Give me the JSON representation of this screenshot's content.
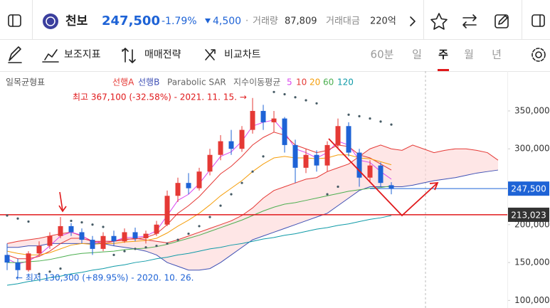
{
  "header": {
    "name": "천보",
    "price": "247,500",
    "change_pct": "-1.79%",
    "change": "4,500",
    "volume_label": "거래량",
    "volume": "87,809",
    "amount_label": "거래대금",
    "amount": "220억"
  },
  "toolbar": {
    "indicators": "보조지표",
    "strategy": "매매전략",
    "compare": "비교차트",
    "periods": [
      "60분",
      "일",
      "주",
      "월",
      "년"
    ],
    "active_period": 2
  },
  "chart_data": {
    "type": "candlestick",
    "legend_title": "일목균형표",
    "up_color": "#e53935",
    "down_color": "#1e63d6",
    "open": [
      160000,
      150000,
      140000,
      162000,
      172000,
      185000,
      198000,
      190000,
      180000,
      168000,
      185000,
      178000,
      190000,
      182000,
      188000,
      200000,
      238000,
      255000,
      248000,
      270000,
      292000,
      310000,
      300000,
      325000,
      350000,
      335000,
      340000,
      305000,
      275000,
      292000,
      278000,
      305000,
      330000,
      295000,
      262000,
      278000,
      252000
    ],
    "high": [
      175000,
      155000,
      165000,
      178000,
      190000,
      210000,
      202000,
      195000,
      185000,
      190000,
      192000,
      195000,
      196000,
      192000,
      205000,
      245000,
      262000,
      268000,
      275000,
      300000,
      318000,
      325000,
      330000,
      367100,
      358000,
      350000,
      342000,
      312000,
      300000,
      298000,
      310000,
      340000,
      335000,
      300000,
      285000,
      282000,
      256000
    ],
    "low": [
      140000,
      130300,
      138000,
      158000,
      168000,
      182000,
      185000,
      175000,
      160000,
      165000,
      172000,
      176000,
      178000,
      175000,
      185000,
      198000,
      230000,
      240000,
      245000,
      265000,
      285000,
      292000,
      296000,
      320000,
      325000,
      322000,
      295000,
      255000,
      268000,
      270000,
      270000,
      300000,
      290000,
      250000,
      255000,
      250000,
      240000
    ],
    "close": [
      150000,
      140000,
      162000,
      172000,
      185000,
      198000,
      190000,
      180000,
      168000,
      185000,
      178000,
      190000,
      182000,
      188000,
      200000,
      238000,
      255000,
      248000,
      270000,
      292000,
      310000,
      300000,
      325000,
      350000,
      335000,
      340000,
      305000,
      275000,
      292000,
      278000,
      305000,
      330000,
      295000,
      262000,
      278000,
      255000,
      247500
    ],
    "cloud": [
      {
        "name": "선행A",
        "color": "#e53935",
        "values": [
          175000,
          178000,
          180000,
          182000,
          185000,
          188000,
          190000,
          185000,
          178000,
          175000,
          178000,
          180000,
          182000,
          180000,
          178000,
          176000,
          180000,
          185000,
          190000,
          195000,
          200000,
          205000,
          212000,
          222000,
          235000,
          245000,
          250000,
          255000,
          260000,
          262000,
          270000,
          275000,
          280000,
          290000,
          300000,
          305000,
          300000,
          298000,
          305000,
          300000,
          295000,
          298000,
          300000,
          300000,
          298000,
          295000,
          285000
        ]
      },
      {
        "name": "선행B",
        "color": "#3f51b5",
        "values": [
          170000,
          170000,
          172000,
          172000,
          175000,
          175000,
          175000,
          175000,
          175000,
          175000,
          172000,
          170000,
          168000,
          165000,
          160000,
          150000,
          145000,
          140000,
          140000,
          142000,
          150000,
          160000,
          170000,
          180000,
          185000,
          190000,
          195000,
          200000,
          205000,
          210000,
          215000,
          225000,
          235000,
          245000,
          250000,
          250000,
          250000,
          250000,
          252000,
          255000,
          258000,
          260000,
          262000,
          265000,
          268000,
          270000,
          272000
        ]
      }
    ],
    "sar": {
      "name": "Parabolic SAR",
      "color": "#455a64",
      "values": [
        212000,
        208000,
        204000,
        135000,
        138000,
        142000,
        205000,
        203000,
        200000,
        197000,
        160000,
        165000,
        168000,
        170000,
        172000,
        175000,
        180000,
        188000,
        198000,
        210000,
        225000,
        240000,
        255000,
        270000,
        290000,
        375000,
        372000,
        368000,
        364000,
        360000,
        240000,
        250000,
        345000,
        343000,
        340000,
        336000,
        332000
      ]
    },
    "ema_title": "지수이동평균",
    "series": [
      {
        "name": "5",
        "color": "#d946ef",
        "values": [
          155000,
          148000,
          152000,
          160000,
          172000,
          185000,
          190000,
          186000,
          176000,
          178000,
          178000,
          183000,
          183000,
          185000,
          192000,
          212000,
          232000,
          240000,
          254000,
          272000,
          290000,
          296000,
          310000,
          330000,
          335000,
          338000,
          322000,
          300000,
          295000,
          288000,
          295000,
          310000,
          305000,
          285000,
          282000,
          270000,
          260000
        ]
      },
      {
        "name": "10",
        "color": "#e53935",
        "values": [
          160000,
          155000,
          155000,
          158000,
          165000,
          175000,
          182000,
          182000,
          178000,
          178000,
          178000,
          181000,
          181000,
          183000,
          188000,
          200000,
          215000,
          225000,
          237000,
          252000,
          267000,
          277000,
          290000,
          305000,
          315000,
          322000,
          318000,
          305000,
          300000,
          295000,
          298000,
          305000,
          303000,
          292000,
          288000,
          280000,
          272000
        ]
      },
      {
        "name": "20",
        "color": "#f59e0b",
        "values": [
          165000,
          162000,
          160000,
          160000,
          163000,
          168000,
          173000,
          175000,
          174000,
          175000,
          175000,
          177000,
          178000,
          179000,
          182000,
          189000,
          198000,
          206000,
          215000,
          226000,
          238000,
          248000,
          258000,
          270000,
          280000,
          288000,
          290000,
          288000,
          288000,
          287000,
          288000,
          292000,
          292000,
          288000,
          287000,
          283000,
          279000
        ]
      },
      {
        "name": "60",
        "color": "#4caf50",
        "values": [
          150000,
          150000,
          151000,
          152000,
          154000,
          157000,
          160000,
          162000,
          163000,
          164000,
          165000,
          167000,
          168000,
          169000,
          171000,
          174000,
          178000,
          182000,
          186000,
          191000,
          196000,
          201000,
          206000,
          212000,
          218000,
          223000,
          227000,
          229000,
          232000,
          235000,
          238000,
          241000,
          244000,
          246000,
          248000,
          249000,
          251000
        ]
      },
      {
        "name": "120",
        "color": "#0e9aa7",
        "values": [
          120000,
          122000,
          125000,
          127000,
          130000,
          132000,
          135000,
          137000,
          140000,
          142000,
          145000,
          147000,
          150000,
          152000,
          155000,
          157000,
          160000,
          162000,
          165000,
          168000,
          170000,
          173000,
          175000,
          178000,
          181000,
          183000,
          186000,
          188000,
          191000,
          194000,
          196000,
          199000,
          201000,
          204000,
          207000,
          209000,
          212000
        ]
      }
    ],
    "ylim": [
      90000,
      402500
    ],
    "yticks": [
      {
        "value": 100000,
        "label": "100,000"
      },
      {
        "value": 150000,
        "label": "150,000"
      },
      {
        "value": 200000,
        "label": "200,000"
      },
      {
        "value": 300000,
        "label": "300,000"
      },
      {
        "value": 350000,
        "label": "350,000"
      }
    ],
    "annotations": [
      "최고 367,100 (-32.58%) - 2021. 11. 15. →",
      "← 최저 130,300 (+89.95%) - 2020. 10. 26."
    ],
    "last_price": {
      "value": 247500,
      "label": "247,500",
      "color": "#1e63d6"
    },
    "reference_line": {
      "value": 213023,
      "label": "213,023",
      "color": "#e0191b"
    }
  }
}
